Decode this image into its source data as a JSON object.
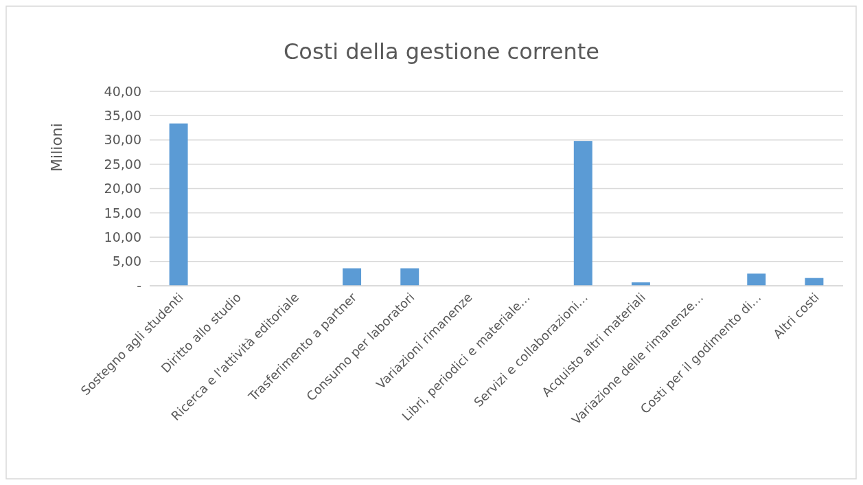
{
  "chart_data": {
    "type": "bar",
    "title": "Costi della gestione corrente",
    "ylabel": "Milioni",
    "categories": [
      "Sostegno agli studenti",
      "Diritto allo studio",
      "Ricerca e l'attività editoriale",
      "Trasferimento a partner",
      "Consumo per laboratori",
      "Variazioni rimanenze",
      "Libri, periodici e materiale…",
      "Servizi e collaborazioni…",
      "Acquisto altri materiali",
      "Variazione delle rimanenze…",
      "Costi per il godimento di…",
      "Altri costi"
    ],
    "values": [
      33.4,
      0,
      0,
      3.6,
      3.6,
      0,
      0,
      29.8,
      0.7,
      0,
      2.5,
      1.6
    ],
    "color": "#5b9bd5",
    "ylim": [
      0,
      40
    ],
    "yticks": [
      {
        "value": 0,
        "label": "-"
      },
      {
        "value": 5,
        "label": "5,00"
      },
      {
        "value": 10,
        "label": "10,00"
      },
      {
        "value": 15,
        "label": "15,00"
      },
      {
        "value": 20,
        "label": "20,00"
      },
      {
        "value": 25,
        "label": "25,00"
      },
      {
        "value": 30,
        "label": "30,00"
      },
      {
        "value": 35,
        "label": "35,00"
      },
      {
        "value": 40,
        "label": "40,00"
      }
    ],
    "grid": "y"
  }
}
